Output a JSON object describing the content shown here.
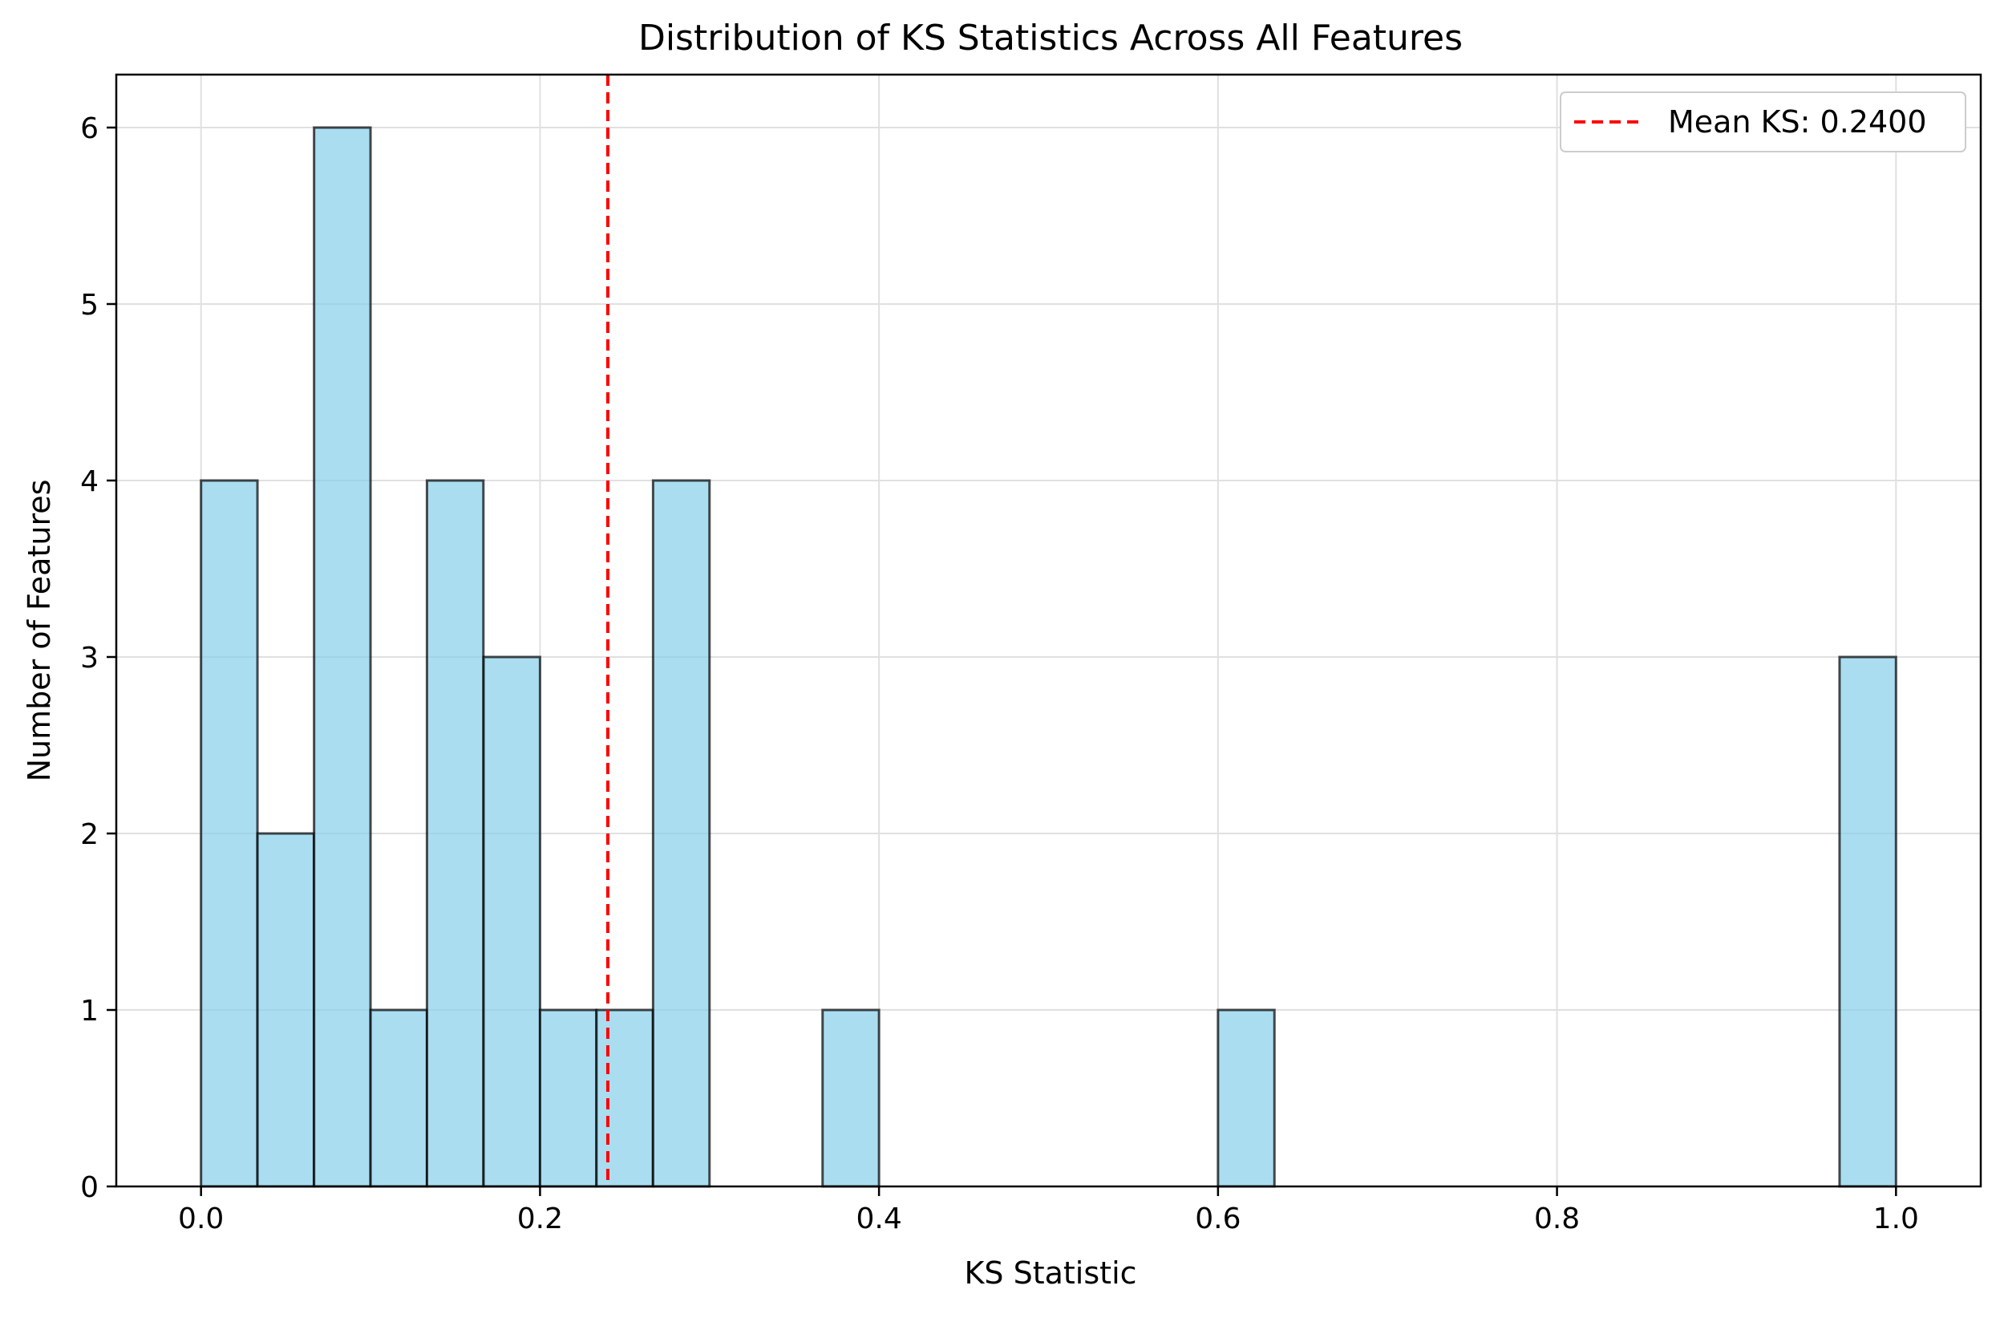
{
  "chart_data": {
    "type": "bar",
    "title": "Distribution of KS Statistics Across All Features",
    "xlabel": "KS Statistic",
    "ylabel": "Number of Features",
    "xlim": [
      -0.05,
      1.05
    ],
    "ylim": [
      0,
      6.3
    ],
    "xticks": [
      0.0,
      0.2,
      0.4,
      0.6,
      0.8,
      1.0
    ],
    "xtick_labels": [
      "0.0",
      "0.2",
      "0.4",
      "0.6",
      "0.8",
      "1.0"
    ],
    "yticks": [
      0,
      1,
      2,
      3,
      4,
      5,
      6
    ],
    "ytick_labels": [
      "0",
      "1",
      "2",
      "3",
      "4",
      "5",
      "6"
    ],
    "grid": true,
    "bin_width": 0.0333,
    "bins": [
      {
        "start": 0.0,
        "count": 4
      },
      {
        "start": 0.0333,
        "count": 2
      },
      {
        "start": 0.0667,
        "count": 6
      },
      {
        "start": 0.1,
        "count": 1
      },
      {
        "start": 0.1333,
        "count": 4
      },
      {
        "start": 0.1667,
        "count": 3
      },
      {
        "start": 0.2,
        "count": 1
      },
      {
        "start": 0.2333,
        "count": 1
      },
      {
        "start": 0.2667,
        "count": 4
      },
      {
        "start": 0.3667,
        "count": 1
      },
      {
        "start": 0.6,
        "count": 1
      },
      {
        "start": 0.9667,
        "count": 3
      }
    ],
    "mean_line": {
      "x": 0.24,
      "label": "Mean KS: 0.2400",
      "color": "#ff0000"
    },
    "legend_position": "top-right",
    "colors": {
      "bar_fill": "#87ceeb",
      "bar_edge": "#000000",
      "grid": "#e0e0e0",
      "mean_line": "#ff0000"
    }
  }
}
